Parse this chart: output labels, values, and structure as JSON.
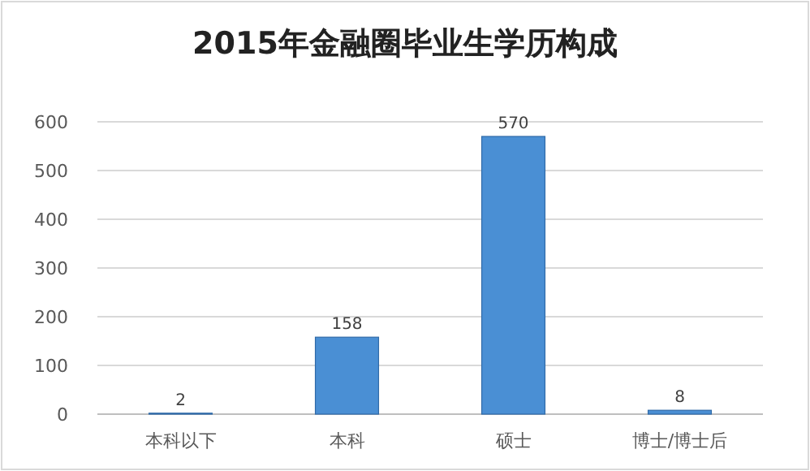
{
  "chart_data": {
    "type": "bar",
    "title": "2015年金融圈毕业生学历构成",
    "categories": [
      "本科以下",
      "本科",
      "硕士",
      "博士/博士后"
    ],
    "values": [
      2,
      158,
      570,
      8
    ],
    "color": "#4a8fd4",
    "ylim": [
      0,
      600
    ],
    "yticks": [
      0,
      100,
      200,
      300,
      400,
      500,
      600
    ],
    "grid": "y",
    "data_labels": true
  }
}
